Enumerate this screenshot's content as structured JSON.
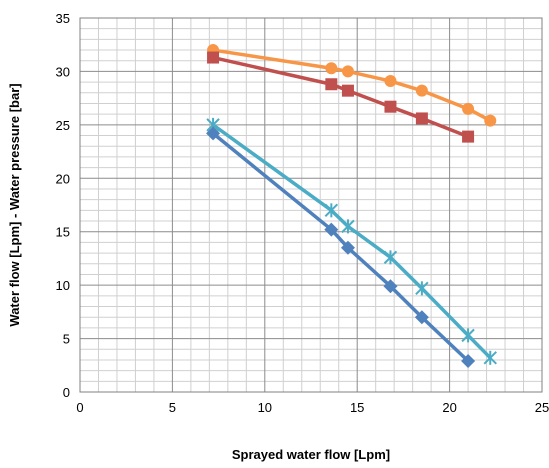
{
  "chart_data": {
    "type": "line",
    "xlabel": "Sprayed water flow [Lpm]",
    "ylabel": "Water flow [Lpm] - Water pressure [bar]",
    "xlim": [
      0,
      25
    ],
    "ylim": [
      0,
      35
    ],
    "x_ticks": [
      "0",
      "5",
      "10",
      "15",
      "20",
      "25"
    ],
    "y_ticks": [
      "0",
      "5",
      "10",
      "15",
      "20",
      "25",
      "30",
      "35"
    ],
    "grid": true,
    "minor_grid": true,
    "legend": "none",
    "series": [
      {
        "marker": "circle",
        "color": "#F79646",
        "x": [
          7.2,
          13.6,
          14.5,
          16.8,
          18.5,
          21.0,
          22.2
        ],
        "y": [
          32.0,
          30.3,
          30.0,
          29.1,
          28.2,
          26.5,
          25.4
        ]
      },
      {
        "marker": "square",
        "color": "#C0504D",
        "x": [
          7.2,
          13.6,
          14.5,
          16.8,
          18.5,
          21.0
        ],
        "y": [
          31.3,
          28.8,
          28.2,
          26.7,
          25.6,
          23.9
        ]
      },
      {
        "marker": "star",
        "color": "#4BACC6",
        "x": [
          7.2,
          13.6,
          14.5,
          16.8,
          18.5,
          21.0,
          22.2
        ],
        "y": [
          25.0,
          17.0,
          15.5,
          12.6,
          9.7,
          5.3,
          3.2
        ]
      },
      {
        "marker": "diamond",
        "color": "#4F81BD",
        "x": [
          7.2,
          13.6,
          14.5,
          16.8,
          18.5,
          21.0
        ],
        "y": [
          24.2,
          15.2,
          13.5,
          9.9,
          7.0,
          2.9
        ]
      }
    ]
  }
}
